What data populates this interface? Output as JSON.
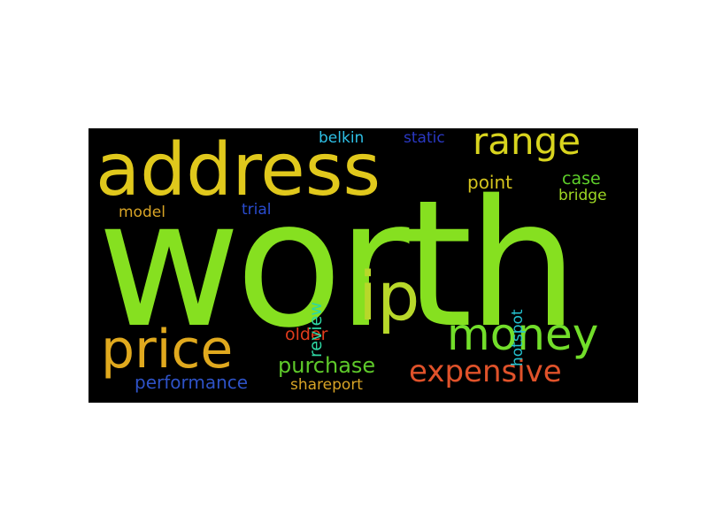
{
  "word_cloud": {
    "background": "#000000",
    "words": [
      {
        "id": "worth",
        "text": "worth",
        "color": "#86e020"
      },
      {
        "id": "address",
        "text": "address",
        "color": "#e0c81c"
      },
      {
        "id": "range",
        "text": "range",
        "color": "#d8d41e"
      },
      {
        "id": "ip",
        "text": "ip",
        "color": "#b8d82a"
      },
      {
        "id": "money",
        "text": "money",
        "color": "#72de2a"
      },
      {
        "id": "price",
        "text": "price",
        "color": "#e0a91e"
      },
      {
        "id": "expensive",
        "text": "expensive",
        "color": "#e0522a"
      },
      {
        "id": "purchase",
        "text": "purchase",
        "color": "#5ec92a"
      },
      {
        "id": "performance",
        "text": "performance",
        "color": "#2e52c6"
      },
      {
        "id": "shareport",
        "text": "shareport",
        "color": "#d8a426"
      },
      {
        "id": "older",
        "text": "older",
        "color": "#e03c1c"
      },
      {
        "id": "review",
        "text": "review",
        "color": "#2ed6a2"
      },
      {
        "id": "hotspot",
        "text": "hotspot",
        "color": "#24c2d0"
      },
      {
        "id": "belkin",
        "text": "belkin",
        "color": "#2ec0e6"
      },
      {
        "id": "static",
        "text": "static",
        "color": "#2a38c2"
      },
      {
        "id": "point",
        "text": "point",
        "color": "#d4c41e"
      },
      {
        "id": "case",
        "text": "case",
        "color": "#5ed02a"
      },
      {
        "id": "bridge",
        "text": "bridge",
        "color": "#9ed824"
      },
      {
        "id": "model",
        "text": "model",
        "color": "#d8a426"
      },
      {
        "id": "trial",
        "text": "trial",
        "color": "#2a4cd0"
      }
    ]
  }
}
